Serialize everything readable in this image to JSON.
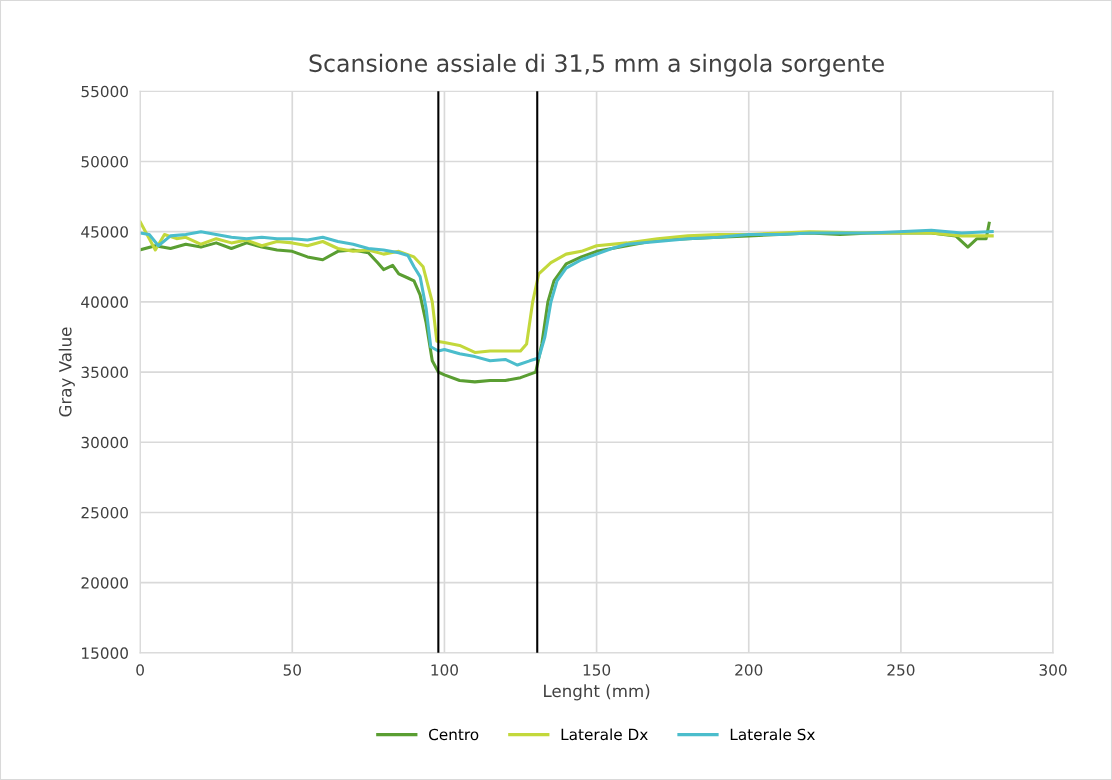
{
  "chart_data": {
    "type": "line",
    "title": "Scansione assiale di 31,5 mm a singola sorgente",
    "xlabel": "Lenght (mm)",
    "ylabel": "Gray Value",
    "xlim": [
      0,
      300
    ],
    "xticks": [
      0,
      50,
      100,
      150,
      200,
      250,
      300
    ],
    "ylim": [
      15000,
      55000
    ],
    "yticks": [
      15000,
      20000,
      25000,
      30000,
      35000,
      40000,
      45000,
      50000,
      55000
    ],
    "grid": true,
    "legend": "bottom",
    "marker": "none",
    "line_style": "solid",
    "ref_lines": [
      {
        "axis": "x",
        "value": 98,
        "color": "#000000"
      },
      {
        "axis": "x",
        "value": 130.5,
        "color": "#000000"
      }
    ],
    "series": [
      {
        "name": "Centro",
        "color": "#5a9e32",
        "x": [
          0,
          5,
          10,
          15,
          20,
          25,
          30,
          35,
          40,
          45,
          50,
          55,
          60,
          65,
          70,
          75,
          78,
          80,
          83,
          85,
          88,
          90,
          92,
          94,
          96,
          98,
          100,
          105,
          110,
          115,
          120,
          125,
          130,
          132,
          134,
          136,
          140,
          145,
          150,
          160,
          170,
          180,
          190,
          200,
          210,
          220,
          230,
          240,
          250,
          260,
          268,
          272,
          275,
          278,
          279
        ],
        "values": [
          43700,
          44000,
          43800,
          44100,
          43900,
          44200,
          43800,
          44200,
          43900,
          43700,
          43600,
          43200,
          43000,
          43600,
          43700,
          43500,
          42800,
          42300,
          42600,
          42000,
          41700,
          41500,
          40500,
          38500,
          35800,
          35000,
          34800,
          34400,
          34300,
          34400,
          34400,
          34600,
          35000,
          37000,
          40000,
          41500,
          42700,
          43200,
          43600,
          44000,
          44400,
          44500,
          44600,
          44700,
          44800,
          44900,
          44800,
          44900,
          44900,
          44900,
          44700,
          43900,
          44500,
          44500,
          45600
        ]
      },
      {
        "name": "Laterale Dx",
        "color": "#c3d83b",
        "x": [
          0,
          2,
          5,
          8,
          12,
          15,
          20,
          25,
          30,
          35,
          40,
          45,
          50,
          55,
          60,
          65,
          70,
          75,
          80,
          85,
          90,
          93,
          96,
          97.5,
          100,
          105,
          110,
          115,
          120,
          125,
          127,
          129,
          131,
          135,
          140,
          145,
          150,
          160,
          170,
          180,
          190,
          200,
          220,
          240,
          260,
          270,
          280
        ],
        "values": [
          45700,
          44900,
          43700,
          44800,
          44500,
          44600,
          44100,
          44500,
          44200,
          44400,
          44000,
          44300,
          44200,
          44000,
          44300,
          43800,
          43600,
          43700,
          43400,
          43600,
          43200,
          42500,
          40000,
          37200,
          37100,
          36900,
          36400,
          36500,
          36500,
          36500,
          37000,
          40000,
          42000,
          42800,
          43400,
          43600,
          44000,
          44200,
          44500,
          44700,
          44800,
          44800,
          45000,
          44900,
          44900,
          44700,
          44700
        ]
      },
      {
        "name": "Laterale Sx",
        "color": "#4bbdcc",
        "x": [
          0,
          3,
          6,
          10,
          15,
          20,
          25,
          30,
          35,
          40,
          45,
          50,
          55,
          60,
          65,
          70,
          75,
          80,
          85,
          88,
          90,
          92,
          94,
          95.5,
          98,
          100,
          105,
          110,
          115,
          120,
          124,
          128,
          131,
          133,
          135,
          137,
          140,
          145,
          150,
          155,
          160,
          170,
          180,
          190,
          200,
          210,
          220,
          240,
          260,
          270,
          280
        ],
        "values": [
          44900,
          44800,
          44000,
          44700,
          44800,
          45000,
          44800,
          44600,
          44500,
          44600,
          44500,
          44500,
          44400,
          44600,
          44300,
          44100,
          43800,
          43700,
          43500,
          43300,
          42500,
          41800,
          39500,
          36800,
          36500,
          36600,
          36300,
          36100,
          35800,
          35900,
          35500,
          35800,
          36000,
          37500,
          40000,
          41500,
          42400,
          43000,
          43400,
          43800,
          44100,
          44300,
          44500,
          44600,
          44800,
          44800,
          44900,
          44900,
          45100,
          44900,
          45000
        ]
      }
    ]
  }
}
